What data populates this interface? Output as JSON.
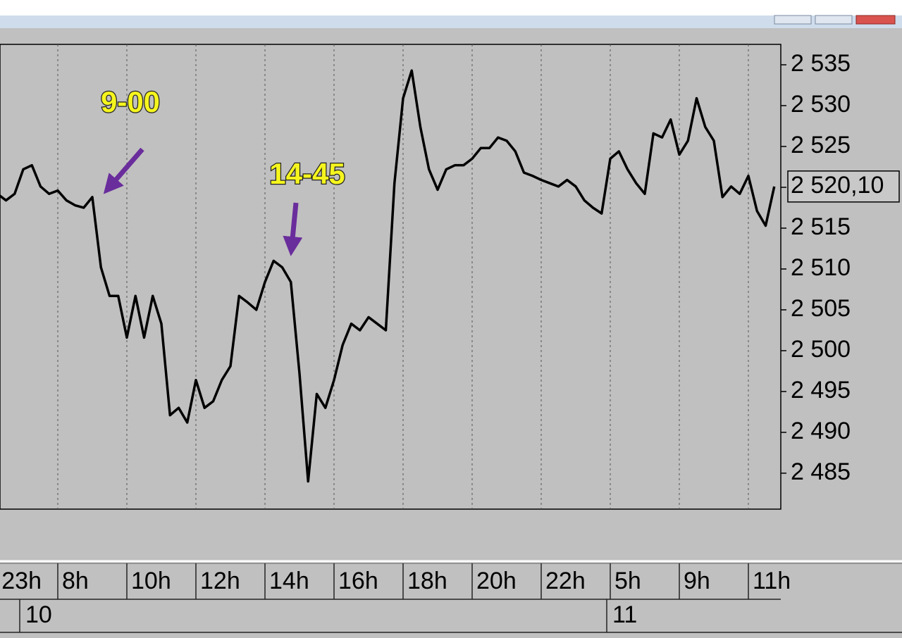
{
  "chart_data": {
    "type": "line",
    "color": "#000000",
    "categories": [
      "23h",
      null,
      null,
      null,
      null,
      null,
      null,
      "8h",
      null,
      null,
      null,
      null,
      null,
      null,
      null,
      "10h",
      null,
      null,
      null,
      null,
      null,
      null,
      null,
      "12h",
      null,
      null,
      null,
      null,
      null,
      null,
      null,
      "14h",
      null,
      null,
      null,
      null,
      null,
      null,
      null,
      "16h",
      null,
      null,
      null,
      null,
      null,
      null,
      null,
      "18h",
      null,
      null,
      null,
      null,
      null,
      null,
      null,
      "20h",
      null,
      null,
      null,
      null,
      null,
      null,
      null,
      "22h",
      null,
      null,
      null,
      null,
      null,
      null,
      null,
      "5h",
      null,
      null,
      null,
      null,
      null,
      null,
      null,
      "9h",
      null,
      null,
      null,
      null,
      null,
      null,
      null,
      "11h",
      null,
      null,
      null
    ],
    "date_categories": [
      null,
      null,
      null,
      "10",
      null,
      null,
      null,
      null,
      null,
      null,
      null,
      null,
      null,
      null,
      null,
      null,
      null,
      null,
      null,
      null,
      null,
      null,
      null,
      null,
      null,
      null,
      null,
      null,
      null,
      null,
      null,
      null,
      null,
      null,
      null,
      null,
      null,
      null,
      null,
      null,
      null,
      null,
      null,
      null,
      null,
      null,
      null,
      null,
      null,
      null,
      null,
      null,
      null,
      null,
      null,
      null,
      null,
      null,
      null,
      null,
      null,
      null,
      null,
      null,
      null,
      null,
      null,
      null,
      null,
      null,
      null,
      "11",
      null,
      null,
      null,
      null,
      null,
      null,
      null,
      null,
      null,
      null,
      null,
      null,
      null,
      null,
      null,
      null,
      null,
      null,
      null
    ],
    "values": [
      2519.2,
      2518.4,
      2519.2,
      2522.2,
      2522.7,
      2520.1,
      2519.2,
      2519.6,
      2518.4,
      2517.8,
      2517.5,
      2518.8,
      2510.2,
      2506.7,
      2506.7,
      2501.6,
      2506.7,
      2501.6,
      2506.7,
      2503.3,
      2492.1,
      2493,
      2491.2,
      2496.4,
      2493,
      2493.8,
      2496.4,
      2498.1,
      2506.7,
      2505.9,
      2505,
      2508.4,
      2511,
      2510.2,
      2508.4,
      2497.2,
      2484,
      2494.7,
      2493,
      2496.4,
      2500.7,
      2503.3,
      2502.5,
      2504.1,
      2503.3,
      2502.5,
      2520.5,
      2530.9,
      2534.3,
      2527.4,
      2522.2,
      2519.7,
      2522.2,
      2522.7,
      2522.7,
      2523.5,
      2524.8,
      2524.8,
      2526.1,
      2525.7,
      2524.4,
      2521.8,
      2521.4,
      2520.9,
      2520.5,
      2520.1,
      2520.9,
      2520.1,
      2518.4,
      2517.5,
      2516.8,
      2523.5,
      2524.4,
      2522.2,
      2520.5,
      2519.2,
      2526.6,
      2526.1,
      2528.3,
      2524,
      2525.7,
      2530.9,
      2527.4,
      2525.7,
      2518.8,
      2520.1,
      2519.2,
      2521.4,
      2517.1,
      2515.3,
      2520.1
    ],
    "ylim": [
      2480.6,
      2537.5
    ],
    "yticks": [
      {
        "value": 2485,
        "label": "2 485"
      },
      {
        "value": 2490,
        "label": "2 490"
      },
      {
        "value": 2495,
        "label": "2 495"
      },
      {
        "value": 2500,
        "label": "2 500"
      },
      {
        "value": 2505,
        "label": "2 505"
      },
      {
        "value": 2510,
        "label": "2 510"
      },
      {
        "value": 2515,
        "label": "2 515"
      },
      {
        "value": 2520,
        "label": "2 520"
      },
      {
        "value": 2525,
        "label": "2 525"
      },
      {
        "value": 2530,
        "label": "2 530"
      },
      {
        "value": 2535,
        "label": "2 535"
      }
    ],
    "last_price": {
      "value": 2520.1,
      "label": "2 520,10"
    },
    "annotations": [
      {
        "text": "9-00"
      },
      {
        "text": "14-45"
      }
    ],
    "grid": true
  }
}
